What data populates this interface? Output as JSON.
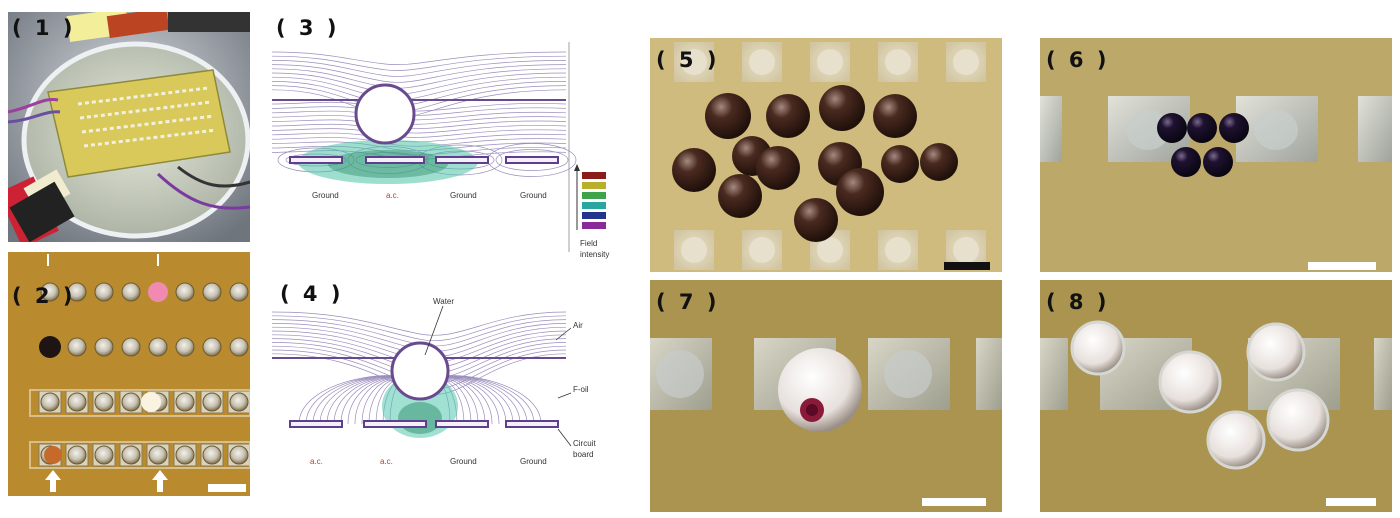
{
  "figure": {
    "panel_labels": [
      "( 1 )",
      "( 2 )",
      "( 3 )",
      "( 4 )",
      "( 5 )",
      "( 6 )",
      "( 7 )",
      "( 8 )"
    ],
    "panel3": {
      "electrode_labels": [
        "Ground",
        "a.c.",
        "Ground",
        "Ground"
      ],
      "legend_title": "Field",
      "legend_title2": "intensity",
      "legend_colors": [
        "#8b1a1a",
        "#b8b02a",
        "#3fa34a",
        "#2aa6a0",
        "#23348f",
        "#8a2a9a"
      ]
    },
    "panel4": {
      "electrode_labels": [
        "a.c.",
        "a.c.",
        "Ground",
        "Ground"
      ],
      "annotations": {
        "water": "Water",
        "air": "Air",
        "foil": "F-oil",
        "circuit1": "Circuit",
        "circuit2": "board"
      }
    },
    "colors": {
      "ac_label": "#b0412e",
      "field_line": "#6a5a9e",
      "photo_bg_yellow": "#cbb77a",
      "photo_bg_olive": "#b09a5a"
    }
  }
}
